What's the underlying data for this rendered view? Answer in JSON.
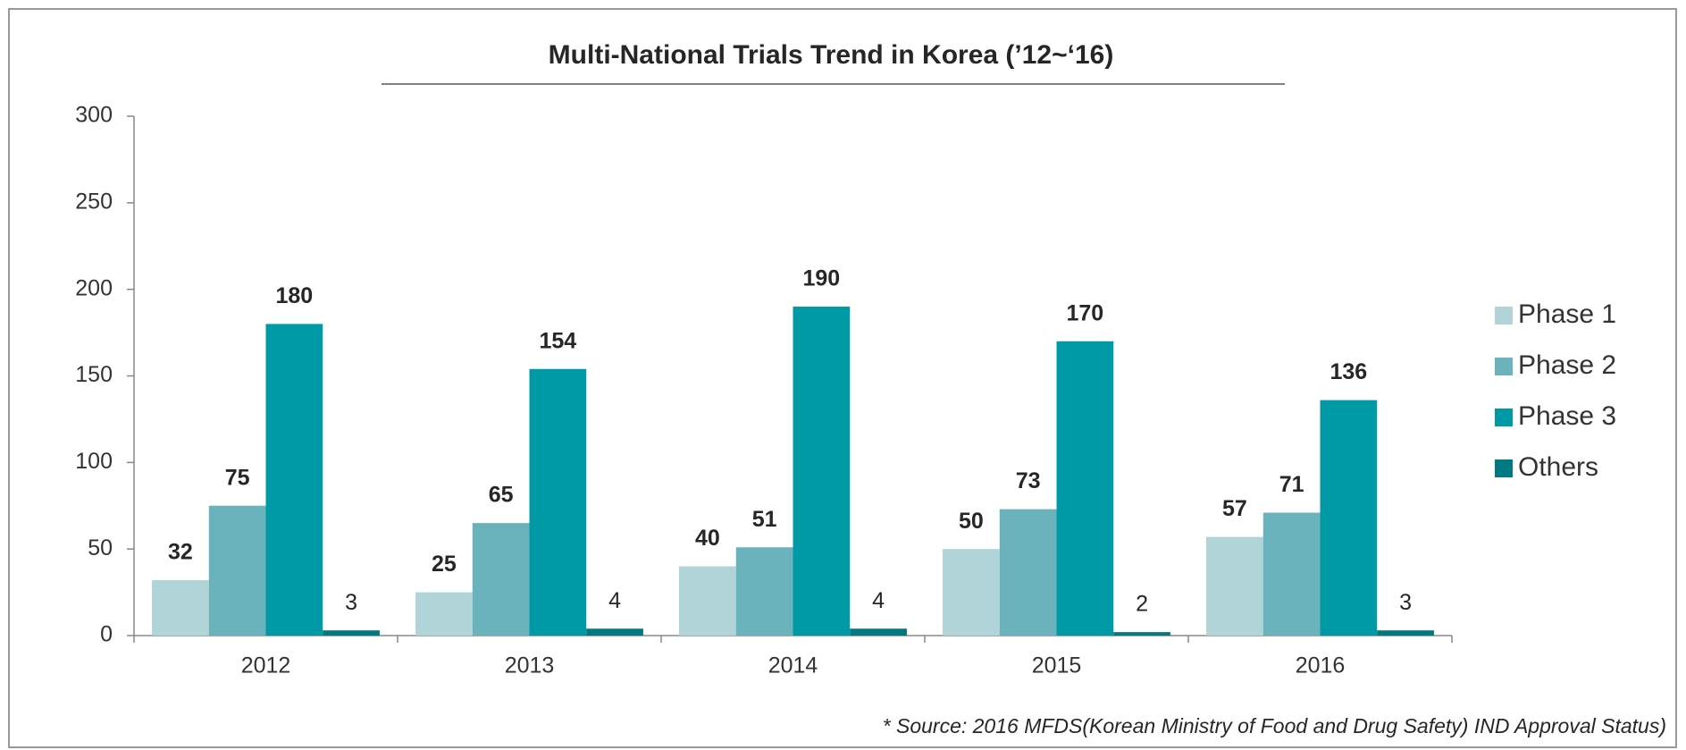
{
  "chart_data": {
    "type": "bar",
    "title": "Multi-National Trials Trend in Korea (’12~‘16)",
    "categories": [
      "2012",
      "2013",
      "2014",
      "2015",
      "2016"
    ],
    "series": [
      {
        "name": "Phase 1",
        "color": "#b0d4d8",
        "values": [
          32,
          25,
          40,
          50,
          57
        ]
      },
      {
        "name": "Phase 2",
        "color": "#6bb3bc",
        "values": [
          75,
          65,
          51,
          73,
          71
        ]
      },
      {
        "name": "Phase 3",
        "color": "#0099a6",
        "values": [
          180,
          154,
          190,
          170,
          136
        ]
      },
      {
        "name": "Others",
        "color": "#007a82",
        "values": [
          3,
          4,
          4,
          2,
          3
        ]
      }
    ],
    "ylim": [
      0,
      300
    ],
    "yticks": [
      0,
      50,
      100,
      150,
      200,
      250,
      300
    ],
    "legend": "right",
    "annotation": "* Source: 2016 MFDS(Korean Ministry of Food and Drug Safety) IND Approval Status)"
  }
}
